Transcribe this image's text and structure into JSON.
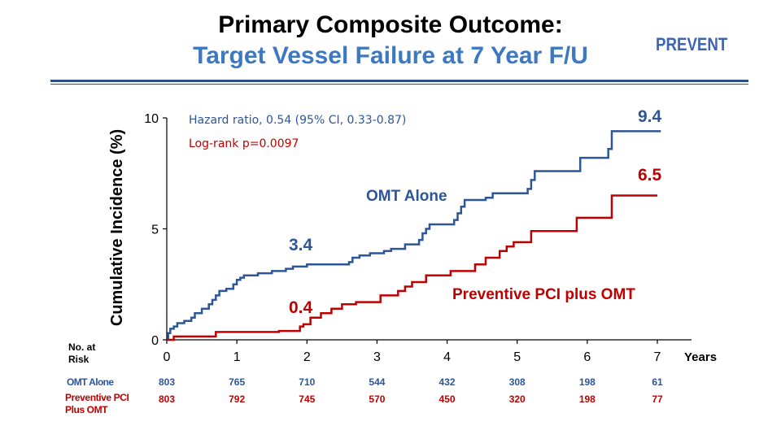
{
  "header": {
    "title": "Primary Composite Outcome:",
    "subtitle": "Target Vessel Failure  at 7 Year F/U",
    "brand": "PREVENT"
  },
  "colors": {
    "omt": "#2e5597",
    "pci": "#c00000",
    "subtitle": "#3d78c2",
    "brand": "#3d64b4"
  },
  "chart_data": {
    "type": "line",
    "step": true,
    "ylabel": "Cumulative Incidence (%)",
    "xlabel": "Years",
    "xlim": [
      0,
      7
    ],
    "ylim": [
      0,
      10
    ],
    "xticks": [
      "0",
      "1",
      "2",
      "3",
      "4",
      "5",
      "6",
      "7"
    ],
    "yticks": [
      "0",
      "5",
      "10"
    ],
    "grid": false,
    "annotations": {
      "hazard_ratio": "Hazard ratio, 0.54 (95% CI, 0.33-0.87)",
      "log_rank": "Log-rank p=0.0097"
    },
    "series": [
      {
        "name": "OMT Alone",
        "color": "#2e5597",
        "points": [
          [
            0,
            0
          ],
          [
            0.02,
            0.3
          ],
          [
            0.05,
            0.5
          ],
          [
            0.1,
            0.6
          ],
          [
            0.15,
            0.75
          ],
          [
            0.25,
            0.85
          ],
          [
            0.35,
            1.0
          ],
          [
            0.4,
            1.2
          ],
          [
            0.5,
            1.4
          ],
          [
            0.6,
            1.6
          ],
          [
            0.65,
            1.8
          ],
          [
            0.7,
            2.0
          ],
          [
            0.75,
            2.2
          ],
          [
            0.85,
            2.3
          ],
          [
            0.95,
            2.5
          ],
          [
            1.0,
            2.7
          ],
          [
            1.05,
            2.8
          ],
          [
            1.1,
            2.9
          ],
          [
            1.3,
            3.0
          ],
          [
            1.5,
            3.1
          ],
          [
            1.7,
            3.2
          ],
          [
            1.8,
            3.3
          ],
          [
            2.0,
            3.4
          ],
          [
            2.6,
            3.5
          ],
          [
            2.65,
            3.7
          ],
          [
            2.75,
            3.8
          ],
          [
            2.9,
            3.9
          ],
          [
            3.1,
            4.0
          ],
          [
            3.2,
            4.1
          ],
          [
            3.4,
            4.3
          ],
          [
            3.6,
            4.5
          ],
          [
            3.65,
            4.8
          ],
          [
            3.7,
            5.0
          ],
          [
            3.75,
            5.2
          ],
          [
            4.1,
            5.4
          ],
          [
            4.15,
            5.7
          ],
          [
            4.2,
            6.0
          ],
          [
            4.25,
            6.3
          ],
          [
            4.55,
            6.4
          ],
          [
            4.65,
            6.6
          ],
          [
            5.15,
            6.8
          ],
          [
            5.2,
            7.2
          ],
          [
            5.25,
            7.6
          ],
          [
            5.9,
            8.2
          ],
          [
            6.3,
            8.6
          ],
          [
            6.35,
            9.4
          ],
          [
            7.05,
            9.4
          ]
        ],
        "end_value": 9.4,
        "callout": 3.4
      },
      {
        "name": "Preventive PCI plus OMT",
        "color": "#c00000",
        "points": [
          [
            0,
            0
          ],
          [
            0.1,
            0.15
          ],
          [
            0.7,
            0.35
          ],
          [
            1.6,
            0.4
          ],
          [
            1.9,
            0.6
          ],
          [
            1.95,
            0.7
          ],
          [
            2.05,
            1.0
          ],
          [
            2.2,
            1.2
          ],
          [
            2.35,
            1.4
          ],
          [
            2.5,
            1.6
          ],
          [
            2.7,
            1.7
          ],
          [
            3.05,
            2.0
          ],
          [
            3.3,
            2.2
          ],
          [
            3.4,
            2.4
          ],
          [
            3.5,
            2.6
          ],
          [
            3.7,
            2.9
          ],
          [
            4.05,
            3.1
          ],
          [
            4.4,
            3.4
          ],
          [
            4.55,
            3.7
          ],
          [
            4.75,
            4.0
          ],
          [
            4.85,
            4.2
          ],
          [
            4.95,
            4.4
          ],
          [
            5.2,
            4.9
          ],
          [
            5.85,
            5.5
          ],
          [
            6.35,
            6.5
          ],
          [
            7.0,
            6.5
          ]
        ],
        "end_value": 6.5,
        "callout": 0.4
      }
    ],
    "risk_table": {
      "title": "No. at Risk",
      "rows": [
        {
          "name": "OMT Alone",
          "values": [
            "803",
            "765",
            "710",
            "544",
            "432",
            "308",
            "198",
            "61"
          ]
        },
        {
          "name": "Preventive PCI Plus OMT",
          "values": [
            "803",
            "792",
            "745",
            "570",
            "450",
            "320",
            "198",
            "77"
          ]
        }
      ]
    }
  },
  "labels": {
    "risk_title_l1": "No. at",
    "risk_title_l2": "Risk",
    "omt_row_name": "OMT Alone",
    "pci_row_name_l1": "Preventive PCI",
    "pci_row_name_l2": "Plus OMT",
    "omt_series_label": "OMT Alone",
    "pci_series_label": "Preventive PCI plus OMT",
    "omt_end": "9.4",
    "pci_end": "6.5",
    "omt_callout": "3.4",
    "pci_callout": "0.4"
  }
}
